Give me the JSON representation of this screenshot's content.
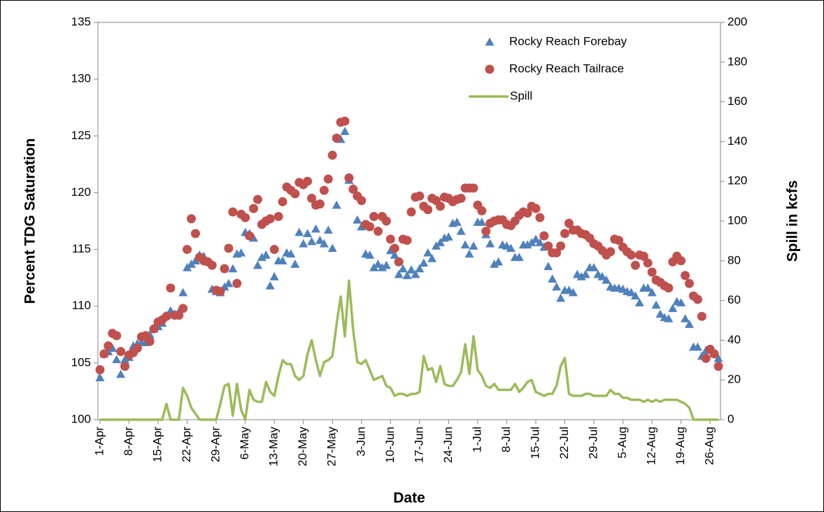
{
  "chart_data": {
    "type": "scatter-line",
    "xlabel": "Date",
    "ylabel": "Percent TDG Saturation",
    "y2label": "Spill in kcfs",
    "categories": [
      "1-Apr",
      null,
      null,
      null,
      null,
      null,
      null,
      "8-Apr",
      null,
      null,
      null,
      null,
      null,
      null,
      "15-Apr",
      null,
      null,
      null,
      null,
      null,
      null,
      "22-Apr",
      null,
      null,
      null,
      null,
      null,
      null,
      "29-Apr",
      null,
      null,
      null,
      null,
      null,
      null,
      "6-May",
      null,
      null,
      null,
      null,
      null,
      null,
      "13-May",
      null,
      null,
      null,
      null,
      null,
      null,
      "20-May",
      null,
      null,
      null,
      null,
      null,
      null,
      "27-May",
      null,
      null,
      null,
      null,
      null,
      null,
      "3-Jun",
      null,
      null,
      null,
      null,
      null,
      null,
      "10-Jun",
      null,
      null,
      null,
      null,
      null,
      null,
      "17-Jun",
      null,
      null,
      null,
      null,
      null,
      null,
      "24-Jun",
      null,
      null,
      null,
      null,
      null,
      null,
      "1-Jul",
      null,
      null,
      null,
      null,
      null,
      null,
      "8-Jul",
      null,
      null,
      null,
      null,
      null,
      null,
      "15-Jul",
      null,
      null,
      null,
      null,
      null,
      null,
      "22-Jul",
      null,
      null,
      null,
      null,
      null,
      null,
      "29-Jul",
      null,
      null,
      null,
      null,
      null,
      null,
      "5-Aug",
      null,
      null,
      null,
      null,
      null,
      null,
      "12-Aug",
      null,
      null,
      null,
      null,
      null,
      null,
      "19-Aug",
      null,
      null,
      null,
      null,
      null,
      null,
      "26-Aug",
      null,
      null
    ],
    "ylim": [
      100,
      135
    ],
    "yticks": [
      100,
      105,
      110,
      115,
      120,
      125,
      130,
      135
    ],
    "y2lim": [
      0,
      200
    ],
    "y2ticks": [
      0,
      20,
      40,
      60,
      80,
      100,
      120,
      140,
      160,
      180,
      200
    ],
    "series": [
      {
        "name": "Rocky Reach Forebay",
        "color": "#4f81bd",
        "marker": "triangle",
        "values": [
          103.7,
          105.8,
          106.0,
          106.3,
          105.3,
          104.0,
          105.3,
          105.5,
          106.5,
          106.7,
          106.8,
          106.8,
          107.5,
          108.0,
          108.2,
          108.5,
          109.2,
          109.6,
          109.3,
          109.5,
          111.2,
          113.4,
          113.7,
          114.0,
          114.5,
          114.4,
          113.9,
          111.5,
          111.3,
          111.2,
          111.7,
          112.0,
          113.3,
          114.6,
          114.7,
          116.5,
          116.4,
          116.0,
          113.6,
          114.3,
          114.5,
          111.8,
          112.6,
          114.0,
          114.0,
          114.7,
          114.6,
          113.7,
          116.5,
          115.5,
          116.4,
          115.7,
          116.8,
          115.8,
          115.5,
          116.7,
          115.1,
          118.9,
          124.7,
          125.4,
          121.1,
          120.4,
          117.6,
          117.0,
          114.6,
          114.5,
          113.4,
          113.7,
          113.4,
          113.6,
          114.9,
          114.5,
          112.8,
          113.3,
          112.7,
          113.2,
          112.8,
          113.3,
          113.8,
          114.7,
          114.2,
          115.3,
          115.6,
          116.0,
          116.1,
          117.3,
          117.4,
          116.6,
          115.4,
          114.6,
          115.3,
          117.4,
          117.4,
          116.3,
          115.5,
          113.7,
          113.9,
          115.4,
          115.3,
          115.1,
          114.3,
          114.3,
          115.4,
          115.4,
          115.6,
          115.9,
          115.6,
          115.2,
          113.5,
          112.4,
          111.7,
          110.7,
          111.4,
          111.4,
          111.2,
          112.8,
          112.6,
          112.8,
          113.4,
          113.4,
          112.8,
          112.6,
          112.3,
          111.7,
          111.6,
          111.6,
          111.5,
          111.3,
          111.2,
          110.9,
          110.3,
          111.6,
          111.6,
          111.2,
          110.1,
          109.3,
          109.0,
          108.9,
          109.8,
          110.4,
          110.3,
          108.9,
          108.4,
          106.4,
          106.4,
          105.6,
          106.1,
          106.2,
          105.8,
          105.4
        ]
      },
      {
        "name": "Rocky Reach Tailrace",
        "color": "#c0504d",
        "marker": "circle",
        "values": [
          104.4,
          105.8,
          106.5,
          107.6,
          107.4,
          106.0,
          104.7,
          105.7,
          105.9,
          106.3,
          107.3,
          107.4,
          106.9,
          108.0,
          108.6,
          108.8,
          109.1,
          111.6,
          109.2,
          109.2,
          109.8,
          115.0,
          117.7,
          116.4,
          114.3,
          114.0,
          113.9,
          113.6,
          111.4,
          111.3,
          113.3,
          115.1,
          118.3,
          112.0,
          118.1,
          117.8,
          116.2,
          118.6,
          119.4,
          117.2,
          117.5,
          117.7,
          115.0,
          117.9,
          119.2,
          120.5,
          120.2,
          119.9,
          120.9,
          120.7,
          121.0,
          119.5,
          118.9,
          119.0,
          120.2,
          121.2,
          123.3,
          124.8,
          126.2,
          126.3,
          121.3,
          120.3,
          119.7,
          119.3,
          117.2,
          117.0,
          117.9,
          116.6,
          117.9,
          117.5,
          115.9,
          115.1,
          113.9,
          115.9,
          115.8,
          118.3,
          119.6,
          119.7,
          118.8,
          118.5,
          119.5,
          119.3,
          118.8,
          119.6,
          119.5,
          119.2,
          119.4,
          119.5,
          120.4,
          120.4,
          120.4,
          118.9,
          118.4,
          116.6,
          117.3,
          117.5,
          117.6,
          117.6,
          117.2,
          117.1,
          117.5,
          118.0,
          118.3,
          118.2,
          118.8,
          118.6,
          117.8,
          116.2,
          115.3,
          114.7,
          114.7,
          115.3,
          116.4,
          117.3,
          116.7,
          116.7,
          116.4,
          116.3,
          116.0,
          115.5,
          115.3,
          114.9,
          114.5,
          114.8,
          115.9,
          115.8,
          115.2,
          114.8,
          114.5,
          113.6,
          114.5,
          114.4,
          113.8,
          113.0,
          112.3,
          112.1,
          111.8,
          111.6,
          113.9,
          114.4,
          114.0,
          112.7,
          112.0,
          110.9,
          110.6,
          109.1,
          105.4,
          106.2,
          105.8,
          104.7
        ]
      },
      {
        "name": "Spill",
        "color": "#9bbb59",
        "marker": "line",
        "axis": "y2",
        "values": [
          0,
          0,
          0,
          0,
          0,
          0,
          0,
          0,
          0,
          0,
          0,
          0,
          0,
          0,
          0,
          0,
          8,
          0,
          0,
          0,
          16,
          12,
          6,
          3,
          0,
          0,
          0,
          0,
          0,
          8,
          17,
          18,
          2,
          18,
          5,
          0,
          15,
          10,
          9,
          9,
          19,
          14,
          12,
          22,
          30,
          28,
          28,
          22,
          20,
          22,
          33,
          40,
          30,
          22,
          29,
          30,
          32,
          48,
          62,
          42,
          70,
          45,
          29,
          28,
          30,
          25,
          20,
          21,
          22,
          17,
          16,
          12,
          13,
          13,
          12,
          13,
          13,
          14,
          32,
          25,
          26,
          19,
          27,
          18,
          17,
          17,
          20,
          24,
          38,
          23,
          42,
          25,
          22,
          17,
          16,
          18,
          15,
          15,
          15,
          15,
          18,
          14,
          16,
          19,
          20,
          14,
          13,
          12,
          13,
          13,
          17,
          27,
          31,
          13,
          12,
          12,
          12,
          13,
          13,
          12,
          12,
          12,
          12,
          15,
          13,
          13,
          11,
          11,
          10,
          10,
          10,
          9,
          10,
          9,
          10,
          9,
          10,
          10,
          10,
          10,
          9,
          8,
          6,
          0,
          0,
          0,
          0,
          0,
          0,
          0
        ]
      }
    ]
  }
}
